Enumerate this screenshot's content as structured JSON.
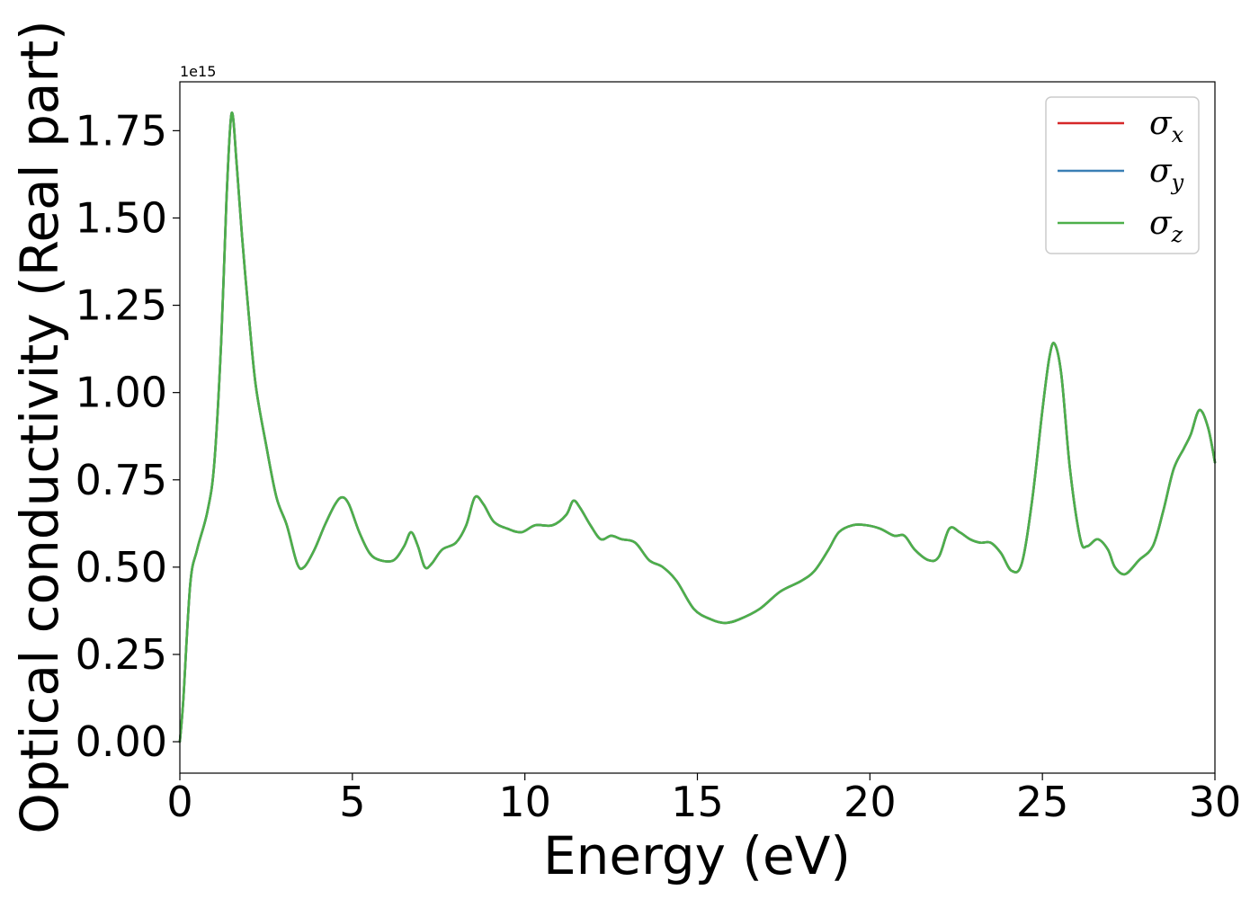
{
  "chart_data": {
    "type": "line",
    "title": "",
    "xlabel": "Energy (eV)",
    "ylabel": "Optical conductivity (Real part)",
    "y_offset_label": "1e15",
    "xlim": [
      0,
      30
    ],
    "ylim": [
      -0.09,
      1.89
    ],
    "x_ticks": [
      0,
      5,
      10,
      15,
      20,
      25,
      30
    ],
    "x_tick_labels": [
      "0",
      "5",
      "10",
      "15",
      "20",
      "25",
      "30"
    ],
    "y_ticks": [
      0,
      0.25,
      0.5,
      0.75,
      1.0,
      1.25,
      1.5,
      1.75
    ],
    "y_tick_labels": [
      "0.00",
      "0.25",
      "0.50",
      "0.75",
      "1.00",
      "1.25",
      "1.50",
      "1.75"
    ],
    "grid": false,
    "legend_position": "top-right",
    "x": [
      0,
      0.1,
      0.3,
      0.5,
      0.8,
      1.0,
      1.2,
      1.35,
      1.5,
      1.65,
      1.8,
      2.0,
      2.2,
      2.5,
      2.8,
      3.1,
      3.4,
      3.6,
      3.9,
      4.2,
      4.5,
      4.7,
      4.9,
      5.2,
      5.5,
      5.8,
      6.2,
      6.5,
      6.7,
      6.9,
      7.1,
      7.3,
      7.6,
      8.0,
      8.3,
      8.55,
      8.8,
      9.1,
      9.5,
      9.9,
      10.3,
      10.8,
      11.2,
      11.4,
      11.6,
      11.9,
      12.2,
      12.5,
      12.8,
      13.2,
      13.6,
      14.0,
      14.4,
      14.9,
      15.4,
      15.8,
      16.2,
      16.8,
      17.4,
      18.0,
      18.4,
      18.8,
      19.1,
      19.5,
      19.9,
      20.3,
      20.7,
      21.0,
      21.3,
      21.7,
      22.0,
      22.3,
      22.6,
      22.9,
      23.2,
      23.5,
      23.8,
      24.1,
      24.4,
      24.7,
      25.0,
      25.2,
      25.35,
      25.55,
      25.8,
      26.1,
      26.3,
      26.6,
      26.9,
      27.1,
      27.4,
      27.8,
      28.2,
      28.5,
      28.8,
      29.1,
      29.3,
      29.55,
      29.8,
      30.0
    ],
    "series": [
      {
        "name": "σx",
        "color": "#d62728",
        "values": [
          0.0,
          0.12,
          0.45,
          0.55,
          0.66,
          0.8,
          1.15,
          1.55,
          1.8,
          1.65,
          1.45,
          1.22,
          1.02,
          0.85,
          0.7,
          0.62,
          0.51,
          0.5,
          0.55,
          0.62,
          0.68,
          0.7,
          0.68,
          0.6,
          0.54,
          0.52,
          0.52,
          0.56,
          0.6,
          0.56,
          0.5,
          0.51,
          0.55,
          0.57,
          0.62,
          0.7,
          0.68,
          0.63,
          0.61,
          0.6,
          0.62,
          0.62,
          0.65,
          0.69,
          0.67,
          0.62,
          0.58,
          0.59,
          0.58,
          0.57,
          0.52,
          0.5,
          0.46,
          0.38,
          0.35,
          0.34,
          0.35,
          0.38,
          0.43,
          0.46,
          0.49,
          0.55,
          0.6,
          0.62,
          0.62,
          0.61,
          0.59,
          0.59,
          0.55,
          0.52,
          0.53,
          0.61,
          0.6,
          0.58,
          0.57,
          0.57,
          0.54,
          0.49,
          0.51,
          0.69,
          0.95,
          1.1,
          1.14,
          1.05,
          0.78,
          0.58,
          0.56,
          0.58,
          0.55,
          0.5,
          0.48,
          0.52,
          0.56,
          0.66,
          0.78,
          0.84,
          0.88,
          0.95,
          0.9,
          0.8
        ]
      },
      {
        "name": "σy",
        "color": "#3a7fb5",
        "values": [
          0.0,
          0.12,
          0.45,
          0.55,
          0.66,
          0.8,
          1.15,
          1.55,
          1.8,
          1.65,
          1.45,
          1.22,
          1.02,
          0.85,
          0.7,
          0.62,
          0.51,
          0.5,
          0.55,
          0.62,
          0.68,
          0.7,
          0.68,
          0.6,
          0.54,
          0.52,
          0.52,
          0.56,
          0.6,
          0.56,
          0.5,
          0.51,
          0.55,
          0.57,
          0.62,
          0.7,
          0.68,
          0.63,
          0.61,
          0.6,
          0.62,
          0.62,
          0.65,
          0.69,
          0.67,
          0.62,
          0.58,
          0.59,
          0.58,
          0.57,
          0.52,
          0.5,
          0.46,
          0.38,
          0.35,
          0.34,
          0.35,
          0.38,
          0.43,
          0.46,
          0.49,
          0.55,
          0.6,
          0.62,
          0.62,
          0.61,
          0.59,
          0.59,
          0.55,
          0.52,
          0.53,
          0.61,
          0.6,
          0.58,
          0.57,
          0.57,
          0.54,
          0.49,
          0.51,
          0.69,
          0.95,
          1.1,
          1.14,
          1.05,
          0.78,
          0.58,
          0.56,
          0.58,
          0.55,
          0.5,
          0.48,
          0.52,
          0.56,
          0.66,
          0.78,
          0.84,
          0.88,
          0.95,
          0.9,
          0.8
        ]
      },
      {
        "name": "σz",
        "color": "#4daf4a",
        "values": [
          0.0,
          0.12,
          0.45,
          0.55,
          0.66,
          0.8,
          1.15,
          1.55,
          1.8,
          1.65,
          1.45,
          1.22,
          1.02,
          0.85,
          0.7,
          0.62,
          0.51,
          0.5,
          0.55,
          0.62,
          0.68,
          0.7,
          0.68,
          0.6,
          0.54,
          0.52,
          0.52,
          0.56,
          0.6,
          0.56,
          0.5,
          0.51,
          0.55,
          0.57,
          0.62,
          0.7,
          0.68,
          0.63,
          0.61,
          0.6,
          0.62,
          0.62,
          0.65,
          0.69,
          0.67,
          0.62,
          0.58,
          0.59,
          0.58,
          0.57,
          0.52,
          0.5,
          0.46,
          0.38,
          0.35,
          0.34,
          0.35,
          0.38,
          0.43,
          0.46,
          0.49,
          0.55,
          0.6,
          0.62,
          0.62,
          0.61,
          0.59,
          0.59,
          0.55,
          0.52,
          0.53,
          0.61,
          0.6,
          0.58,
          0.57,
          0.57,
          0.54,
          0.49,
          0.51,
          0.69,
          0.95,
          1.1,
          1.14,
          1.05,
          0.78,
          0.58,
          0.56,
          0.58,
          0.55,
          0.5,
          0.48,
          0.52,
          0.56,
          0.66,
          0.78,
          0.84,
          0.88,
          0.95,
          0.9,
          0.8
        ]
      }
    ],
    "legend": [
      {
        "symbol": "σ",
        "subscript": "x",
        "color": "#d62728"
      },
      {
        "symbol": "σ",
        "subscript": "y",
        "color": "#3a7fb5"
      },
      {
        "symbol": "σ",
        "subscript": "z",
        "color": "#4daf4a"
      }
    ]
  }
}
